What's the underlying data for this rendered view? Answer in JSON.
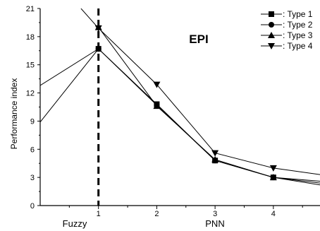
{
  "chart_data": {
    "type": "line",
    "title": "EPI",
    "xlabel_left": "Fuzzy",
    "xlabel": "PNN",
    "ylabel": "Performance index",
    "x_ticks": [
      "1",
      "2",
      "3",
      "4"
    ],
    "y_ticks": [
      "0",
      "3",
      "6",
      "9",
      "12",
      "15",
      "18",
      "21"
    ],
    "ylim": [
      0,
      21
    ],
    "xlim": [
      0,
      4.8
    ],
    "legend_position": "top-right",
    "grid": false,
    "vertical_dashed_line_at": 1,
    "series": [
      {
        "name": ": Type 1",
        "marker": "square",
        "x": [
          0,
          1,
          2,
          3,
          4,
          4.8
        ],
        "values": [
          12.8,
          16.7,
          10.8,
          4.8,
          3.0,
          2.6
        ]
      },
      {
        "name": ": Type 2",
        "marker": "circle",
        "x": [
          0,
          1,
          2,
          3,
          4,
          4.8
        ],
        "values": [
          8.9,
          16.7,
          10.7,
          4.8,
          3.0,
          2.2
        ]
      },
      {
        "name": ": Type 3",
        "marker": "triangle-up",
        "x": [
          1,
          2,
          3,
          4,
          4.8
        ],
        "values": [
          19.0,
          10.6,
          4.9,
          3.0,
          2.4
        ]
      },
      {
        "name": ": Type 4",
        "marker": "triangle-down",
        "x": [
          0.7,
          1,
          2,
          3,
          4,
          4.8
        ],
        "values": [
          21.0,
          18.9,
          12.9,
          5.6,
          4.0,
          3.3
        ]
      }
    ]
  }
}
